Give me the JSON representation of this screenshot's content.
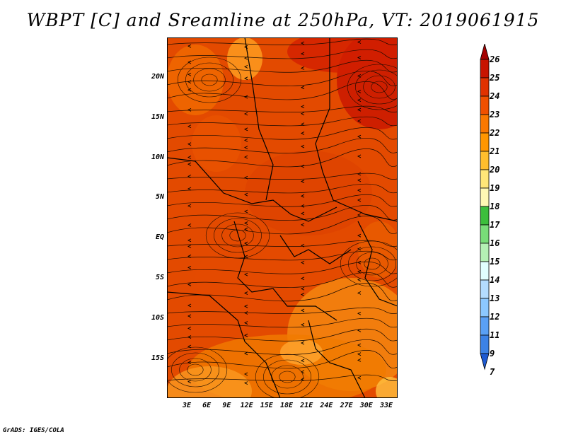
{
  "title": "WBPT [C] and Sreamline at 250hPa, VT: 2019061915",
  "credit": "GrADS: IGES/COLA",
  "map": {
    "lat_labels": [
      "20N",
      "15N",
      "10N",
      "5N",
      "EQ",
      "5S",
      "10S",
      "15S"
    ],
    "lon_labels": [
      "3E",
      "6E",
      "9E",
      "12E",
      "15E",
      "18E",
      "21E",
      "24E",
      "27E",
      "30E",
      "33E"
    ]
  },
  "colorbar": {
    "labels": [
      "26",
      "25",
      "24",
      "23",
      "22",
      "21",
      "20",
      "19",
      "18",
      "17",
      "16",
      "15",
      "14",
      "13",
      "12",
      "11",
      "9",
      "7"
    ],
    "colors": [
      "#a50000",
      "#c81400",
      "#e13200",
      "#f05000",
      "#fa7800",
      "#ff9600",
      "#ffbe2d",
      "#ffe678",
      "#fff8b4",
      "#3cbe3c",
      "#78dc78",
      "#b4f0b4",
      "#e1ffff",
      "#b4dcff",
      "#8cc8ff",
      "#5aa0f5",
      "#3c82e6",
      "#1e5ad2"
    ]
  }
}
